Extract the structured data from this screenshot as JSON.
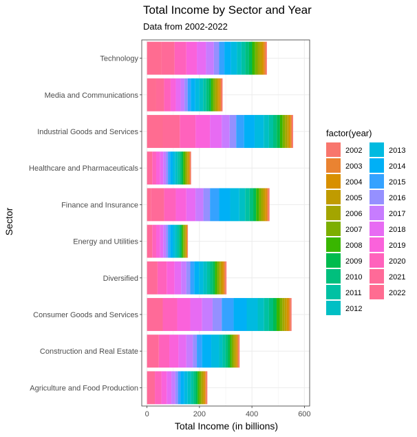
{
  "chart_data": {
    "type": "bar",
    "orientation": "horizontal",
    "stacked": true,
    "title": "Total Income by Sector and Year",
    "subtitle": "Data from 2002-2022",
    "xlabel": "Total Income (in billions)",
    "ylabel": "Sector",
    "xlim": [
      -20,
      620
    ],
    "xticks": [
      0,
      200,
      400,
      600
    ],
    "xtick_labels": [
      "0",
      "200",
      "400",
      "600"
    ],
    "grid": true,
    "legend_title": "factor(year)",
    "legend_position": "right",
    "years": [
      "2002",
      "2003",
      "2004",
      "2005",
      "2006",
      "2007",
      "2008",
      "2009",
      "2010",
      "2011",
      "2012",
      "2013",
      "2014",
      "2015",
      "2016",
      "2017",
      "2018",
      "2019",
      "2020",
      "2021",
      "2022"
    ],
    "year_colors": [
      "#F8766D",
      "#EA8331",
      "#D89000",
      "#C09B00",
      "#A3A500",
      "#7CAE00",
      "#39B600",
      "#00BB4E",
      "#00BF7D",
      "#00C1A3",
      "#00BFC4",
      "#00BAE0",
      "#00B0F6",
      "#35A2FF",
      "#9590FF",
      "#C77CFF",
      "#E76BF3",
      "#FA62DB",
      "#FF62BC",
      "#FF6A98",
      "#FF6C91"
    ],
    "categories": [
      "Technology",
      "Media and Communications",
      "Industrial Goods and Services",
      "Healthcare and Pharmaceuticals",
      "Finance and Insurance",
      "Energy and Utilities",
      "Diversified",
      "Consumer Goods and Services",
      "Construction and Real Estate",
      "Agriculture and Food Production"
    ],
    "series": [
      {
        "values": [
          5,
          5,
          5,
          3,
          5,
          2,
          5,
          5,
          4,
          4
        ]
      },
      {
        "values": [
          6,
          5,
          5,
          3,
          6,
          2,
          5,
          6,
          4,
          4
        ]
      },
      {
        "values": [
          7,
          6,
          6,
          4,
          6,
          3,
          6,
          7,
          5,
          5
        ]
      },
      {
        "values": [
          8,
          6,
          7,
          4,
          7,
          3,
          6,
          8,
          5,
          5
        ]
      },
      {
        "values": [
          9,
          7,
          8,
          5,
          8,
          4,
          7,
          9,
          6,
          6
        ]
      },
      {
        "values": [
          10,
          7,
          9,
          5,
          9,
          4,
          7,
          10,
          6,
          6
        ]
      },
      {
        "values": [
          11,
          8,
          10,
          6,
          10,
          5,
          8,
          12,
          7,
          7
        ]
      },
      {
        "values": [
          12,
          8,
          12,
          6,
          11,
          5,
          8,
          13,
          8,
          7
        ]
      },
      {
        "values": [
          14,
          10,
          14,
          7,
          14,
          6,
          10,
          16,
          9,
          9
        ]
      },
      {
        "values": [
          15,
          12,
          16,
          8,
          17,
          7,
          12,
          19,
          11,
          10
        ]
      },
      {
        "values": [
          17,
          14,
          20,
          9,
          22,
          8,
          14,
          24,
          13,
          12
        ]
      },
      {
        "values": [
          23,
          16,
          35,
          10,
          35,
          9,
          17,
          42,
          30,
          13
        ]
      },
      {
        "values": [
          25,
          17,
          40,
          10,
          42,
          10,
          18,
          50,
          35,
          14
        ]
      },
      {
        "values": [
          20,
          12,
          30,
          8,
          35,
          8,
          15,
          45,
          20,
          10
        ]
      },
      {
        "values": [
          20,
          12,
          25,
          8,
          25,
          8,
          15,
          35,
          15,
          10
        ]
      },
      {
        "values": [
          30,
          15,
          30,
          10,
          30,
          10,
          20,
          40,
          25,
          15
        ]
      },
      {
        "values": [
          35,
          18,
          45,
          12,
          35,
          12,
          25,
          45,
          30,
          18
        ]
      },
      {
        "values": [
          40,
          20,
          55,
          15,
          40,
          15,
          30,
          50,
          35,
          20
        ]
      },
      {
        "values": [
          45,
          25,
          60,
          15,
          45,
          15,
          35,
          55,
          40,
          25
        ]
      },
      {
        "values": [
          50,
          30,
          65,
          20,
          50,
          20,
          40,
          60,
          45,
          30
        ]
      },
      {
        "values": [
          55,
          35,
          60,
          0,
          15,
          0,
          0,
          0,
          0,
          0
        ]
      }
    ]
  }
}
